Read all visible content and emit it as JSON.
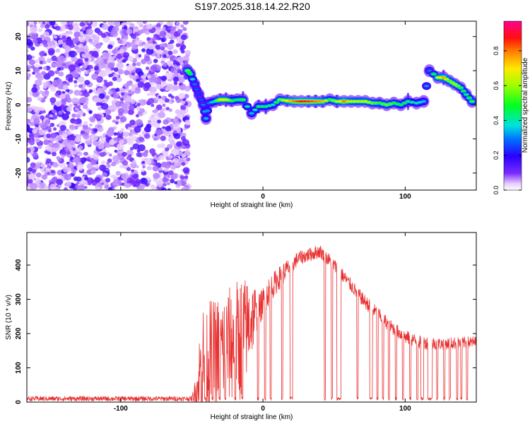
{
  "page_title": "S197.2025.318.14.22.R20",
  "chart_data": [
    {
      "id": "spectrogram",
      "type": "heatmap",
      "title": "S197.2025.318.14.22.R20",
      "xlabel": "Height of straight line (km)",
      "ylabel": "Frequency (Hz)",
      "xlim": [
        -166,
        150
      ],
      "ylim": [
        -25,
        24.5
      ],
      "xticks": [
        -100,
        0,
        100
      ],
      "xticklabels": [
        "-100",
        "0",
        "100"
      ],
      "yticks": [
        -20,
        -10,
        0,
        10,
        20
      ],
      "yticklabels": [
        "-20",
        "-10",
        "0",
        "10",
        "20"
      ],
      "noise_region": [
        -166,
        -54
      ],
      "ridge": [
        {
          "x": -53,
          "f": 10,
          "a": 0.55
        },
        {
          "x": -51,
          "f": 9,
          "a": 0.45
        },
        {
          "x": -48,
          "f": 6,
          "a": 0.3
        },
        {
          "x": -45,
          "f": 3,
          "a": 0.25
        },
        {
          "x": -42,
          "f": 0,
          "a": 0.3
        },
        {
          "x": -40,
          "f": -4,
          "a": 0.35
        },
        {
          "x": -38,
          "f": 0.5,
          "a": 0.3
        },
        {
          "x": -34,
          "f": 1,
          "a": 0.4
        },
        {
          "x": -30,
          "f": 1.5,
          "a": 0.7
        },
        {
          "x": -26,
          "f": 1.5,
          "a": 0.7
        },
        {
          "x": -22,
          "f": 1.2,
          "a": 0.5
        },
        {
          "x": -18,
          "f": 1.5,
          "a": 0.45
        },
        {
          "x": -14,
          "f": 1.5,
          "a": 0.5
        },
        {
          "x": -8,
          "f": -2.5,
          "a": 0.35
        },
        {
          "x": -3,
          "f": -0.5,
          "a": 0.45
        },
        {
          "x": 2,
          "f": -0.5,
          "a": 0.45
        },
        {
          "x": 7,
          "f": 0,
          "a": 0.4
        },
        {
          "x": 12,
          "f": 1.5,
          "a": 0.55
        },
        {
          "x": 17,
          "f": 1.2,
          "a": 0.7
        },
        {
          "x": 22,
          "f": 1,
          "a": 0.8
        },
        {
          "x": 27,
          "f": 1,
          "a": 0.88
        },
        {
          "x": 32,
          "f": 1,
          "a": 0.85
        },
        {
          "x": 37,
          "f": 1,
          "a": 0.8
        },
        {
          "x": 42,
          "f": 1,
          "a": 0.75
        },
        {
          "x": 47,
          "f": 1.5,
          "a": 0.5
        },
        {
          "x": 52,
          "f": 1,
          "a": 0.6
        },
        {
          "x": 57,
          "f": 1,
          "a": 0.8
        },
        {
          "x": 62,
          "f": 1,
          "a": 0.65
        },
        {
          "x": 67,
          "f": 1,
          "a": 0.6
        },
        {
          "x": 72,
          "f": 1,
          "a": 0.65
        },
        {
          "x": 77,
          "f": 0.5,
          "a": 0.55
        },
        {
          "x": 82,
          "f": 0.5,
          "a": 0.5
        },
        {
          "x": 87,
          "f": 0,
          "a": 0.55
        },
        {
          "x": 92,
          "f": 0.5,
          "a": 0.5
        },
        {
          "x": 97,
          "f": 0,
          "a": 0.45
        },
        {
          "x": 102,
          "f": 1,
          "a": 0.45
        },
        {
          "x": 108,
          "f": 0.5,
          "a": 0.4
        },
        {
          "x": 113,
          "f": 1,
          "a": 0.35
        },
        {
          "x": 117,
          "f": 10,
          "a": 0.3
        },
        {
          "x": 123,
          "f": 8,
          "a": 0.65
        },
        {
          "x": 127,
          "f": 8,
          "a": 0.75
        },
        {
          "x": 131,
          "f": 7,
          "a": 0.55
        },
        {
          "x": 135,
          "f": 6,
          "a": 0.6
        },
        {
          "x": 139,
          "f": 5,
          "a": 0.5
        },
        {
          "x": 143,
          "f": 3,
          "a": 0.45
        },
        {
          "x": 147,
          "f": 1,
          "a": 0.5
        }
      ]
    },
    {
      "id": "snr",
      "type": "line",
      "xlabel": "Height of straight line (km)",
      "ylabel": "SNR (10 * v/v)",
      "xlim": [
        -166,
        150
      ],
      "ylim": [
        0,
        495
      ],
      "xticks": [
        -100,
        0,
        100
      ],
      "xticklabels": [
        "-100",
        "0",
        "100"
      ],
      "yticks": [
        0,
        100,
        200,
        300,
        400
      ],
      "yticklabels": [
        "0",
        "100",
        "200",
        "300",
        "400"
      ],
      "color": "#e83030",
      "envelope": [
        {
          "x": -166,
          "base": 10,
          "noise": 14
        },
        {
          "x": -50,
          "base": 10,
          "noise": 14
        },
        {
          "x": -42,
          "base": 80,
          "noise": 220
        },
        {
          "x": -30,
          "base": 120,
          "noise": 200
        },
        {
          "x": -15,
          "base": 150,
          "noise": 230
        },
        {
          "x": -5,
          "base": 250,
          "noise": 100
        },
        {
          "x": 5,
          "base": 330,
          "noise": 80
        },
        {
          "x": 15,
          "base": 380,
          "noise": 60
        },
        {
          "x": 25,
          "base": 420,
          "noise": 40
        },
        {
          "x": 40,
          "base": 440,
          "noise": 40
        },
        {
          "x": 50,
          "base": 400,
          "noise": 40
        },
        {
          "x": 60,
          "base": 350,
          "noise": 40
        },
        {
          "x": 70,
          "base": 300,
          "noise": 40
        },
        {
          "x": 80,
          "base": 260,
          "noise": 40
        },
        {
          "x": 90,
          "base": 220,
          "noise": 40
        },
        {
          "x": 100,
          "base": 190,
          "noise": 40
        },
        {
          "x": 110,
          "base": 175,
          "noise": 40
        },
        {
          "x": 125,
          "base": 170,
          "noise": 35
        },
        {
          "x": 150,
          "base": 175,
          "noise": 35
        }
      ],
      "dropouts": [
        [
          -41,
          -40
        ],
        [
          -36,
          -35
        ],
        [
          -31,
          -30
        ],
        [
          -27,
          -26
        ],
        [
          -20,
          -19
        ],
        [
          -15,
          -14
        ],
        [
          -4,
          -3
        ],
        [
          1,
          2
        ],
        [
          5,
          6
        ],
        [
          13,
          14
        ],
        [
          19,
          21
        ],
        [
          43,
          44
        ],
        [
          48,
          49
        ],
        [
          52,
          55
        ],
        [
          66,
          67
        ],
        [
          75,
          77
        ],
        [
          80,
          81
        ],
        [
          84,
          85
        ],
        [
          88,
          89
        ],
        [
          93,
          94
        ],
        [
          98,
          99
        ],
        [
          103,
          104
        ],
        [
          108,
          109
        ],
        [
          111,
          113
        ],
        [
          116,
          119
        ],
        [
          122,
          123
        ],
        [
          127,
          128
        ],
        [
          131,
          132
        ],
        [
          136,
          137
        ],
        [
          139,
          140
        ],
        [
          143,
          144
        ]
      ]
    }
  ],
  "colorbar": {
    "label": "Normalized spectral amplitude",
    "ticks": [
      0.0,
      0.2,
      0.4,
      0.6,
      0.8
    ],
    "ticklabels": [
      "0.0",
      "0.2",
      "0.4",
      "0.6",
      "0.8"
    ],
    "range": [
      0,
      0.97
    ]
  }
}
